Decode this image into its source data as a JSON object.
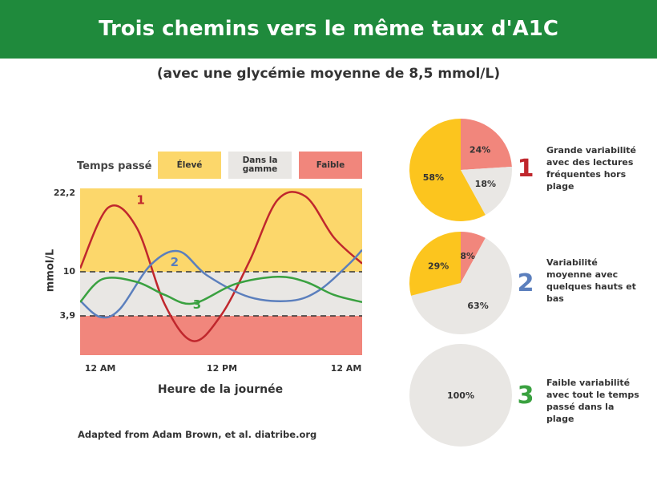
{
  "header": {
    "title": "Trois chemins vers le même taux d'A1C",
    "subtitle": "(avec une glycémie moyenne de 8,5 mmol/L)"
  },
  "legend": {
    "title": "Temps passé",
    "high": "Élevé",
    "in_range": "Dans la gamme",
    "low": "Faible"
  },
  "colors": {
    "banner": "#1f8a3c",
    "high": "#fcd76b",
    "in_range": "#e9e7e4",
    "low": "#f1867c",
    "curve1": "#c0272d",
    "curve2": "#5b7fbd",
    "curve3": "#3aa140"
  },
  "chart_data": [
    {
      "type": "line",
      "xlabel": "Heure de la journée",
      "ylabel": "mmol/L",
      "x_ticks": [
        "12 AM",
        "12 PM",
        "12 AM"
      ],
      "y_ticks": [
        {
          "value": 22.2,
          "label": "22,2"
        },
        {
          "value": 10,
          "label": "10"
        },
        {
          "value": 3.9,
          "label": "3,9"
        }
      ],
      "bands": [
        {
          "name": "Élevé",
          "from": 10,
          "to": 22.2
        },
        {
          "name": "Dans la gamme",
          "from": 3.9,
          "to": 10
        },
        {
          "name": "Faible",
          "from": 0,
          "to": 3.9
        }
      ],
      "series": [
        {
          "name": "1",
          "color": "#c0272d",
          "x": [
            0,
            0.1,
            0.2,
            0.3,
            0.4,
            0.5,
            0.6,
            0.7,
            0.8,
            0.9,
            1.0
          ],
          "y": [
            10.5,
            19.4,
            16.5,
            5.5,
            1.4,
            4.0,
            11.5,
            20.5,
            21.0,
            15.0,
            11.2
          ]
        },
        {
          "name": "2",
          "color": "#5b7fbd",
          "x": [
            0,
            0.07,
            0.14,
            0.25,
            0.35,
            0.45,
            0.6,
            0.75,
            0.85,
            0.95,
            1.0
          ],
          "y": [
            6.0,
            3.8,
            4.8,
            11.0,
            13.0,
            9.5,
            6.5,
            6.0,
            7.5,
            11.0,
            13.2
          ]
        },
        {
          "name": "3",
          "color": "#3aa140",
          "x": [
            0,
            0.08,
            0.2,
            0.3,
            0.4,
            0.55,
            0.7,
            0.8,
            0.9,
            1.0
          ],
          "y": [
            5.8,
            9.0,
            8.6,
            6.8,
            5.6,
            8.3,
            9.3,
            8.6,
            6.8,
            5.8
          ]
        }
      ]
    },
    {
      "type": "pie",
      "label": "1",
      "description": "Grande variabilité avec des lectures fréquentes hors plage",
      "slices": [
        {
          "name": "Faible",
          "value": 24,
          "label": "24%",
          "color": "#f1867c"
        },
        {
          "name": "Dans la gamme",
          "value": 18,
          "label": "18%",
          "color": "#e9e7e4"
        },
        {
          "name": "Élevé",
          "value": 58,
          "label": "58%",
          "color": "#fcc51e"
        }
      ]
    },
    {
      "type": "pie",
      "label": "2",
      "description": "Variabilité moyenne avec quelques hauts et bas",
      "slices": [
        {
          "name": "Faible",
          "value": 8,
          "label": "8%",
          "color": "#f1867c"
        },
        {
          "name": "Dans la gamme",
          "value": 63,
          "label": "63%",
          "color": "#e9e7e4"
        },
        {
          "name": "Élevé",
          "value": 29,
          "label": "29%",
          "color": "#fcc51e"
        }
      ]
    },
    {
      "type": "pie",
      "label": "3",
      "description": "Faible variabilité avec tout le temps passé dans la plage",
      "slices": [
        {
          "name": "Dans la gamme",
          "value": 100,
          "label": "100%",
          "color": "#e9e7e4"
        }
      ]
    }
  ],
  "source": "Adapted from Adam Brown, et al. diatribe.org"
}
